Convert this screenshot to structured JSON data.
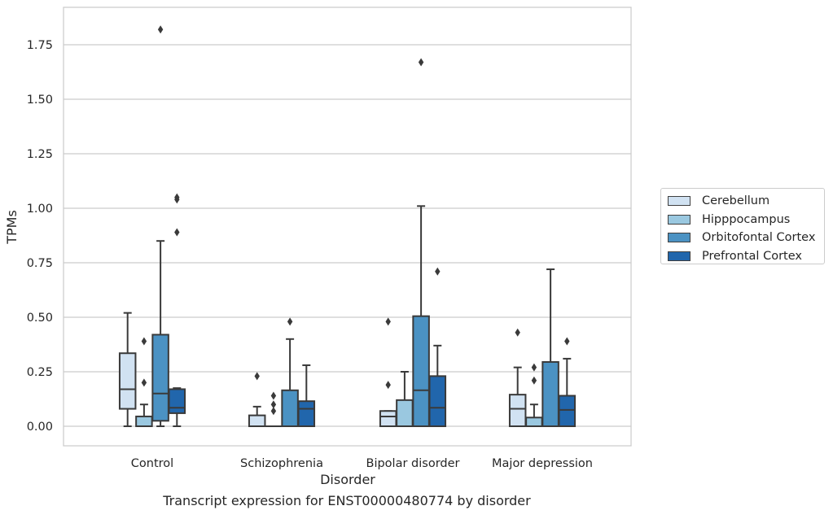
{
  "chart_data": {
    "type": "box",
    "title": "",
    "caption": "Transcript expression for ENST00000480774 by disorder",
    "xlabel": "Disorder",
    "ylabel": "TPMs",
    "ylim": [
      -0.09,
      2.0
    ],
    "yticks": [
      0.0,
      0.25,
      0.5,
      0.75,
      1.0,
      1.25,
      1.5,
      1.75
    ],
    "ytick_labels": [
      "0.00",
      "0.25",
      "0.50",
      "0.75",
      "1.00",
      "1.25",
      "1.50",
      "1.75"
    ],
    "grid": "horizontal",
    "legend_position": "right",
    "categories": [
      "Control",
      "Schizophrenia",
      "Bipolar disorder",
      "Major depression"
    ],
    "series": [
      {
        "name": "Cerebellum",
        "color": "#d1e2f2",
        "boxes": [
          {
            "whislo": 0.0,
            "q1": 0.08,
            "med": 0.17,
            "q3": 0.335,
            "whishi": 0.52,
            "fliers": []
          },
          {
            "whislo": 0.0,
            "q1": 0.0,
            "med": 0.0,
            "q3": 0.05,
            "whishi": 0.09,
            "fliers": [
              0.23
            ]
          },
          {
            "whislo": 0.0,
            "q1": 0.0,
            "med": 0.045,
            "q3": 0.07,
            "whishi": 0.07,
            "fliers": [
              0.19,
              0.48
            ]
          },
          {
            "whislo": 0.0,
            "q1": 0.0,
            "med": 0.08,
            "q3": 0.145,
            "whishi": 0.27,
            "fliers": [
              0.43
            ]
          }
        ]
      },
      {
        "name": "Hipppocampus",
        "color": "#9ac8e0",
        "boxes": [
          {
            "whislo": 0.0,
            "q1": 0.0,
            "med": 0.0,
            "q3": 0.045,
            "whishi": 0.1,
            "fliers": [
              0.2,
              0.39
            ]
          },
          {
            "whislo": 0.0,
            "q1": 0.0,
            "med": 0.0,
            "q3": 0.0,
            "whishi": 0.0,
            "fliers": [
              0.07,
              0.1,
              0.14
            ]
          },
          {
            "whislo": 0.0,
            "q1": 0.0,
            "med": 0.0,
            "q3": 0.12,
            "whishi": 0.25,
            "fliers": []
          },
          {
            "whislo": 0.0,
            "q1": 0.0,
            "med": 0.0,
            "q3": 0.04,
            "whishi": 0.1,
            "fliers": [
              0.21,
              0.27
            ]
          }
        ]
      },
      {
        "name": "Orbitofontal Cortex",
        "color": "#4b92c3",
        "boxes": [
          {
            "whislo": 0.0,
            "q1": 0.025,
            "med": 0.15,
            "q3": 0.42,
            "whishi": 0.85,
            "fliers": [
              1.82
            ]
          },
          {
            "whislo": 0.0,
            "q1": 0.0,
            "med": 0.0,
            "q3": 0.165,
            "whishi": 0.4,
            "fliers": [
              0.48
            ]
          },
          {
            "whislo": 0.0,
            "q1": 0.0,
            "med": 0.165,
            "q3": 0.505,
            "whishi": 1.01,
            "fliers": [
              1.67
            ]
          },
          {
            "whislo": 0.0,
            "q1": 0.0,
            "med": 0.0,
            "q3": 0.295,
            "whishi": 0.72,
            "fliers": []
          }
        ]
      },
      {
        "name": "Prefrontal Cortex",
        "color": "#2166ac",
        "boxes": [
          {
            "whislo": 0.0,
            "q1": 0.06,
            "med": 0.085,
            "q3": 0.17,
            "whishi": 0.175,
            "fliers": [
              0.89,
              1.04,
              1.05
            ]
          },
          {
            "whislo": 0.0,
            "q1": 0.0,
            "med": 0.08,
            "q3": 0.115,
            "whishi": 0.28,
            "fliers": []
          },
          {
            "whislo": 0.0,
            "q1": 0.0,
            "med": 0.085,
            "q3": 0.23,
            "whishi": 0.37,
            "fliers": [
              0.71
            ]
          },
          {
            "whislo": 0.0,
            "q1": 0.0,
            "med": 0.075,
            "q3": 0.14,
            "whishi": 0.31,
            "fliers": [
              0.39
            ]
          }
        ]
      }
    ]
  }
}
